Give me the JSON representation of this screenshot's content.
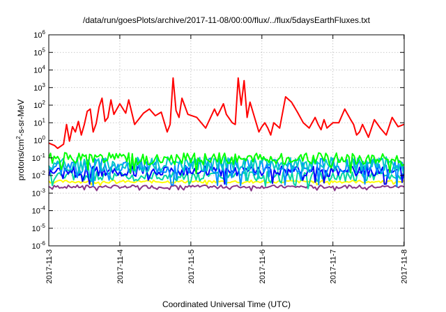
{
  "chart_data": {
    "type": "line",
    "title": "/data/run/goesPlots/archive/2017-11-08/00:00/flux/../flux/5daysEarthFluxes.txt",
    "xlabel": "Coordinated Universal Time (UTC)",
    "ylabel": {
      "prefix": "protons/cm",
      "sup": "2",
      "suffix": "-s-sr-MeV"
    },
    "y_scale": "log",
    "ylim": [
      1e-06,
      1000000.0
    ],
    "y_ticks": [
      {
        "exp": "-6"
      },
      {
        "exp": "-5"
      },
      {
        "exp": "-4"
      },
      {
        "exp": "-3"
      },
      {
        "exp": "-2"
      },
      {
        "exp": "-1"
      },
      {
        "exp": "0"
      },
      {
        "exp": "1"
      },
      {
        "exp": "2"
      },
      {
        "exp": "3"
      },
      {
        "exp": "4"
      },
      {
        "exp": "5"
      },
      {
        "exp": "6"
      }
    ],
    "x_ticks": [
      "2017-11-3",
      "2017-11-4",
      "2017-11-5",
      "2017-11-6",
      "2017-11-7",
      "2017-11-8"
    ],
    "xlim": [
      "2017-11-03T00:00",
      "2017-11-08T00:05"
    ],
    "grid": true,
    "legend": "none",
    "series": [
      {
        "color": "#ff0000",
        "x": [
          "2017-11-03T00:00",
          "2017-11-03T02:00",
          "2017-11-03T03:00",
          "2017-11-03T05:00",
          "2017-11-03T06:00",
          "2017-11-03T07:00",
          "2017-11-03T08:00",
          "2017-11-03T09:00",
          "2017-11-03T10:00",
          "2017-11-03T11:00",
          "2017-11-03T12:00",
          "2017-11-03T13:00",
          "2017-11-03T14:00",
          "2017-11-03T15:00",
          "2017-11-03T16:00",
          "2017-11-03T17:00",
          "2017-11-03T18:00",
          "2017-11-03T19:00",
          "2017-11-03T20:00",
          "2017-11-03T21:00",
          "2017-11-03T22:00",
          "2017-11-04T00:00",
          "2017-11-04T02:00",
          "2017-11-04T03:00",
          "2017-11-04T05:00",
          "2017-11-04T08:00",
          "2017-11-04T10:00",
          "2017-11-04T12:00",
          "2017-11-04T14:00",
          "2017-11-04T16:00",
          "2017-11-04T17:00",
          "2017-11-04T18:00",
          "2017-11-04T19:00",
          "2017-11-04T20:00",
          "2017-11-04T21:00",
          "2017-11-04T23:00",
          "2017-11-05T02:00",
          "2017-11-05T05:00",
          "2017-11-05T08:00",
          "2017-11-05T09:00",
          "2017-11-05T11:00",
          "2017-11-05T12:00",
          "2017-11-05T14:00",
          "2017-11-05T15:00",
          "2017-11-05T16:00",
          "2017-11-05T17:00",
          "2017-11-05T18:00",
          "2017-11-05T19:00",
          "2017-11-05T20:00",
          "2017-11-05T21:00",
          "2017-11-05T23:00",
          "2017-11-06T00:00",
          "2017-11-06T01:00",
          "2017-11-06T02:00",
          "2017-11-06T03:00",
          "2017-11-06T04:00",
          "2017-11-06T06:00",
          "2017-11-06T08:00",
          "2017-11-06T10:00",
          "2017-11-06T12:00",
          "2017-11-06T14:00",
          "2017-11-06T16:00",
          "2017-11-06T18:00",
          "2017-11-06T19:00",
          "2017-11-06T20:00",
          "2017-11-06T21:00",
          "2017-11-06T22:00",
          "2017-11-07T00:00",
          "2017-11-07T02:00",
          "2017-11-07T04:00",
          "2017-11-07T06:00",
          "2017-11-07T07:00",
          "2017-11-07T08:00",
          "2017-11-07T09:00",
          "2017-11-07T10:00",
          "2017-11-07T12:00",
          "2017-11-07T14:00",
          "2017-11-07T16:00",
          "2017-11-07T18:00",
          "2017-11-07T20:00",
          "2017-11-07T22:00",
          "2017-11-08T00:00"
        ],
        "y": [
          0.7,
          0.5,
          0.35,
          0.6,
          8,
          0.9,
          6,
          3,
          12,
          2,
          8,
          45,
          60,
          3,
          9,
          80,
          250,
          12,
          20,
          200,
          30,
          120,
          35,
          200,
          8,
          35,
          60,
          25,
          40,
          3,
          8,
          3500,
          50,
          20,
          250,
          30,
          20,
          5,
          60,
          25,
          120,
          30,
          10,
          8,
          3500,
          100,
          2500,
          20,
          150,
          40,
          3,
          6,
          10,
          5,
          2,
          10,
          5,
          300,
          150,
          40,
          10,
          5,
          20,
          8,
          4,
          15,
          5,
          10,
          10,
          60,
          15,
          8,
          2,
          3,
          8,
          1.5,
          15,
          5,
          2,
          20,
          6,
          8
        ]
      },
      {
        "color": "#00ff00",
        "base": 0.09,
        "amp": 0.34,
        "seed": 1
      },
      {
        "color": "#00c8c8",
        "base": 0.045,
        "amp": 0.4,
        "seed": 2
      },
      {
        "color": "#0090ff",
        "base": 0.035,
        "amp": 0.45,
        "seed": 3
      },
      {
        "color": "#0000ff",
        "base": 0.018,
        "amp": 0.3,
        "seed": 4
      },
      {
        "color": "#00d8a0",
        "base": 0.009,
        "amp": 0.28,
        "seed": 5
      },
      {
        "color": "#ffff00",
        "base": 0.0045,
        "amp": 0.08,
        "seed": 6
      },
      {
        "color": "#883388",
        "base": 0.0023,
        "amp": 0.09,
        "seed": 7
      }
    ]
  }
}
